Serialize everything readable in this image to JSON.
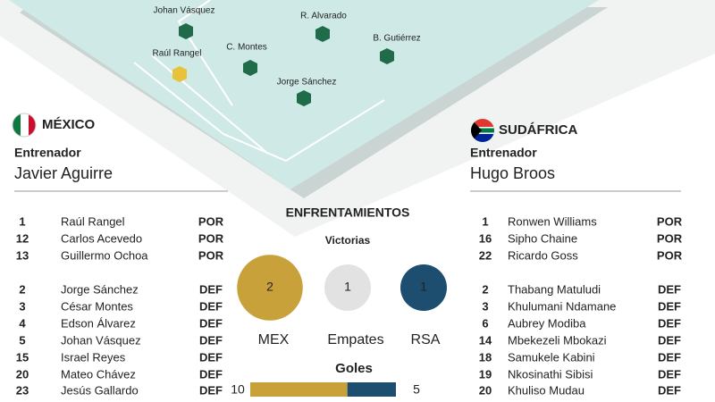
{
  "pitch": {
    "players": [
      {
        "name": "Johan Vásquez",
        "color": "#1f6b4a"
      },
      {
        "name": "R. Alvarado",
        "color": "#1f6b4a"
      },
      {
        "name": "C. Montes",
        "color": "#1f6b4a"
      },
      {
        "name": "B. Gutiérrez",
        "color": "#1f6b4a"
      },
      {
        "name": "Raúl Rangel",
        "color": "#e8c23a"
      },
      {
        "name": "Jorge Sánchez",
        "color": "#1f6b4a"
      }
    ]
  },
  "teams": [
    {
      "country": "MÉXICO",
      "coach_label": "Entrenador",
      "coach": "Javier Aguirre",
      "position_color": "#c9a227",
      "roster": [
        [
          {
            "number": 1,
            "name": "Raúl Rangel",
            "position": "POR"
          },
          {
            "number": 12,
            "name": "Carlos Acevedo",
            "position": "POR"
          },
          {
            "number": 13,
            "name": "Guillermo Ochoa",
            "position": "POR"
          }
        ],
        [
          {
            "number": 2,
            "name": "Jorge Sánchez",
            "position": "DEF"
          },
          {
            "number": 3,
            "name": "César Montes",
            "position": "DEF"
          },
          {
            "number": 4,
            "name": "Edson Álvarez",
            "position": "DEF"
          },
          {
            "number": 5,
            "name": "Johan Vásquez",
            "position": "DEF"
          },
          {
            "number": 15,
            "name": "Israel Reyes",
            "position": "DEF"
          },
          {
            "number": 20,
            "name": "Mateo Chávez",
            "position": "DEF"
          },
          {
            "number": 23,
            "name": "Jesús Gallardo",
            "position": "DEF"
          }
        ]
      ]
    },
    {
      "country": "SUDÁFRICA",
      "coach_label": "Entrenador",
      "coach": "Hugo Broos",
      "position_color": "#1f4e79",
      "roster": [
        [
          {
            "number": 1,
            "name": "Ronwen Williams",
            "position": "POR"
          },
          {
            "number": 16,
            "name": "Sipho Chaine",
            "position": "POR"
          },
          {
            "number": 22,
            "name": "Ricardo Goss",
            "position": "POR"
          }
        ],
        [
          {
            "number": 2,
            "name": "Thabang Matuludi",
            "position": "DEF"
          },
          {
            "number": 3,
            "name": "Khulumani Ndamane",
            "position": "DEF"
          },
          {
            "number": 6,
            "name": "Aubrey Modiba",
            "position": "DEF"
          },
          {
            "number": 14,
            "name": "Mbekezeli Mbokazi",
            "position": "DEF"
          },
          {
            "number": 18,
            "name": "Samukele Kabini",
            "position": "DEF"
          },
          {
            "number": 19,
            "name": "Nkosinathi Sibisi",
            "position": "DEF"
          },
          {
            "number": 20,
            "name": "Khuliso Mudau",
            "position": "DEF"
          }
        ]
      ]
    }
  ],
  "head_to_head": {
    "title": "ENFRENTAMIENTOS",
    "wins_label": "Victorias",
    "wins": [
      {
        "label": "MEX",
        "value": 2,
        "color": "#c9a13b"
      },
      {
        "label": "Empates",
        "value": 1,
        "color": "#e2e2e2"
      },
      {
        "label": "RSA",
        "value": 1,
        "color": "#1d4e6f"
      }
    ],
    "goals_label": "Goles",
    "goals": [
      {
        "value": 10,
        "color": "#c9a13b"
      },
      {
        "value": 5,
        "color": "#1d4e6f"
      }
    ]
  }
}
